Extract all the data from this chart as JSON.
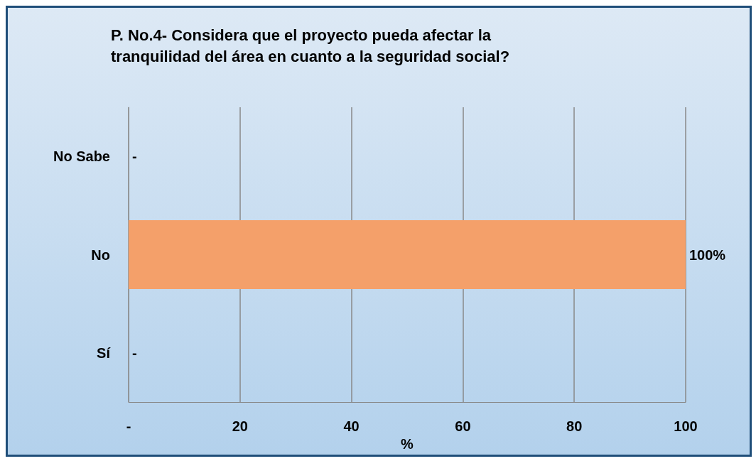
{
  "chart_data": {
    "type": "bar",
    "orientation": "horizontal",
    "title": "P. No.4- Considera que el proyecto pueda afectar la\ntranquilidad del área en cuanto a la seguridad social?",
    "categories": [
      "No Sabe",
      "No",
      "Sí"
    ],
    "values": [
      0,
      100,
      0
    ],
    "colors": [
      "#1b5e8c",
      "#f4a06a",
      "#7a68b0"
    ],
    "value_labels": [
      "-",
      "100%",
      "-"
    ],
    "xlabel": "%",
    "xlim": [
      0,
      100
    ],
    "xticks": [
      {
        "value": 0,
        "label": "-"
      },
      20,
      40,
      60,
      80,
      100
    ],
    "grid": "x"
  }
}
